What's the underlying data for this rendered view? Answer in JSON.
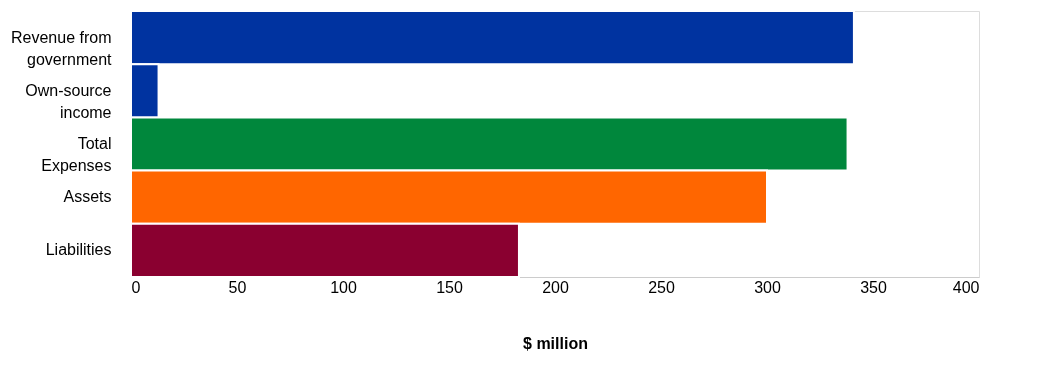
{
  "chart_data": {
    "type": "bar",
    "orientation": "horizontal",
    "xlabel": "$ million",
    "categories": [
      "Revenue from\ngovernment",
      "Own-source\nincome",
      "Total\nExpenses",
      "Assets",
      "Liabilities"
    ],
    "values": [
      341,
      13,
      338,
      300,
      183
    ],
    "colors": [
      "#0033a0",
      "#0033a0",
      "#00873c",
      "#ff6600",
      "#8a0030"
    ],
    "xlim": [
      0,
      400
    ],
    "xticks": [
      0,
      50,
      100,
      150,
      200,
      250,
      300,
      350,
      400
    ],
    "grid": false,
    "legend": false
  }
}
